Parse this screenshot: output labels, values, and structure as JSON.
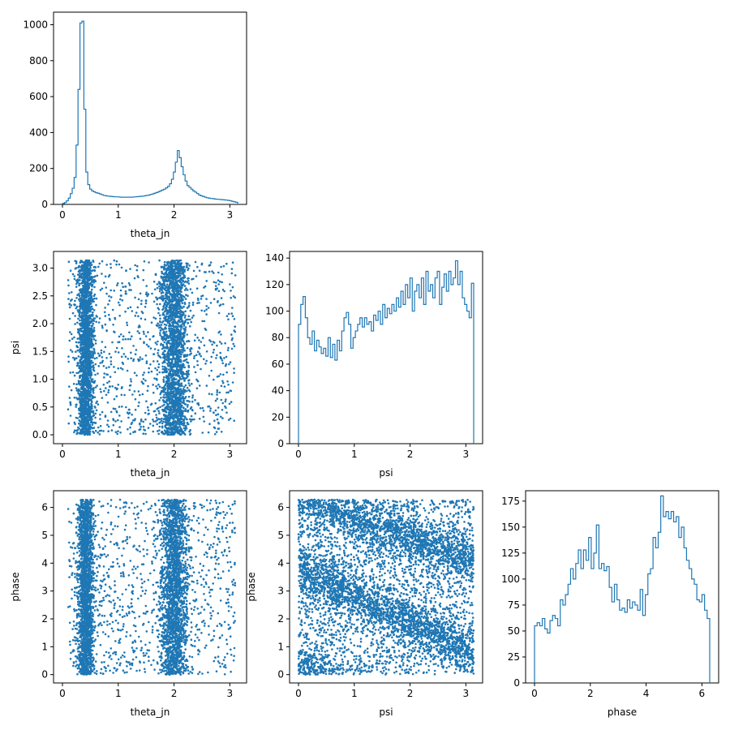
{
  "chart_data": [
    {
      "id": "hist-theta_jn",
      "type": "histogram",
      "xlabel": "theta_jn",
      "ylabel": "",
      "xlim": [
        -0.16,
        3.3
      ],
      "ylim": [
        0,
        1070
      ],
      "xticks": [
        0,
        1,
        2,
        3
      ],
      "yticks": [
        0,
        200,
        400,
        600,
        800,
        1000
      ],
      "bin_range": [
        0,
        3.14
      ],
      "counts": [
        5,
        10,
        20,
        35,
        60,
        90,
        150,
        330,
        640,
        1010,
        1020,
        530,
        180,
        110,
        85,
        75,
        70,
        65,
        62,
        58,
        54,
        50,
        48,
        46,
        45,
        44,
        43,
        42,
        42,
        41,
        40,
        40,
        40,
        40,
        40,
        40,
        41,
        42,
        43,
        44,
        45,
        46,
        48,
        50,
        52,
        55,
        58,
        62,
        66,
        70,
        75,
        80,
        85,
        92,
        100,
        115,
        140,
        180,
        235,
        300,
        260,
        210,
        165,
        130,
        105,
        95,
        85,
        75,
        68,
        60,
        52,
        48,
        44,
        40,
        37,
        35,
        33,
        32,
        30,
        29,
        28,
        27,
        26,
        25,
        24,
        22,
        20,
        17,
        14,
        12
      ]
    },
    {
      "id": "scatter-theta_jn-psi",
      "type": "scatter",
      "xlabel": "theta_jn",
      "ylabel": "psi",
      "xlim": [
        -0.16,
        3.3
      ],
      "ylim": [
        -0.16,
        3.3
      ],
      "xticks": [
        0,
        1,
        2,
        3
      ],
      "yticks": [
        0.0,
        0.5,
        1.0,
        1.5,
        2.0,
        2.5,
        3.0
      ],
      "ytick_labels": [
        "0.0",
        "0.5",
        "1.0",
        "1.5",
        "2.0",
        "2.5",
        "3.0"
      ],
      "n_points": 5000,
      "description_x": "clusters near 0.4 and 2.0",
      "description_y": "uniform 0 to 3.14"
    },
    {
      "id": "hist-psi",
      "type": "histogram",
      "xlabel": "psi",
      "ylabel": "",
      "xlim": [
        -0.16,
        3.3
      ],
      "ylim": [
        0,
        145
      ],
      "xticks": [
        0,
        1,
        2,
        3
      ],
      "yticks": [
        0,
        20,
        40,
        60,
        80,
        100,
        120,
        140
      ],
      "bin_range": [
        0,
        3.14
      ],
      "counts": [
        90,
        105,
        111,
        95,
        80,
        75,
        85,
        70,
        78,
        73,
        68,
        72,
        66,
        80,
        65,
        75,
        63,
        78,
        70,
        85,
        95,
        99,
        90,
        72,
        80,
        85,
        90,
        95,
        88,
        95,
        90,
        92,
        85,
        97,
        93,
        100,
        90,
        105,
        95,
        102,
        98,
        105,
        100,
        110,
        103,
        115,
        105,
        120,
        110,
        125,
        100,
        115,
        120,
        110,
        125,
        105,
        130,
        115,
        120,
        110,
        125,
        130,
        105,
        118,
        128,
        115,
        130,
        120,
        125,
        138,
        120,
        130,
        110,
        105,
        100,
        95,
        121
      ]
    },
    {
      "id": "scatter-theta_jn-phase",
      "type": "scatter",
      "xlabel": "theta_jn",
      "ylabel": "phase",
      "xlim": [
        -0.16,
        3.3
      ],
      "ylim": [
        -0.3,
        6.6
      ],
      "xticks": [
        0,
        1,
        2,
        3
      ],
      "yticks": [
        0,
        1,
        2,
        3,
        4,
        5,
        6
      ],
      "n_points": 5000
    },
    {
      "id": "scatter-psi-phase",
      "type": "scatter",
      "xlabel": "psi",
      "ylabel": "phase",
      "xlim": [
        -0.16,
        3.3
      ],
      "ylim": [
        -0.3,
        6.6
      ],
      "xticks": [
        0,
        1,
        2,
        3
      ],
      "yticks": [
        0,
        1,
        2,
        3,
        4,
        5,
        6
      ],
      "n_points": 6000
    },
    {
      "id": "hist-phase",
      "type": "histogram",
      "xlabel": "phase",
      "ylabel": "",
      "xlim": [
        -0.32,
        6.6
      ],
      "ylim": [
        0,
        185
      ],
      "xticks": [
        0,
        2,
        4,
        6
      ],
      "yticks": [
        0,
        25,
        50,
        75,
        100,
        125,
        150,
        175
      ],
      "bin_range": [
        0,
        6.28
      ],
      "counts": [
        55,
        58,
        55,
        62,
        52,
        48,
        60,
        65,
        62,
        55,
        80,
        75,
        85,
        95,
        110,
        100,
        115,
        128,
        110,
        128,
        118,
        140,
        110,
        125,
        152,
        110,
        115,
        108,
        112,
        92,
        78,
        95,
        80,
        70,
        72,
        68,
        80,
        72,
        78,
        75,
        70,
        90,
        65,
        85,
        105,
        110,
        140,
        130,
        145,
        180,
        160,
        165,
        158,
        165,
        155,
        160,
        140,
        150,
        130,
        118,
        110,
        100,
        95,
        80,
        78,
        85,
        70,
        62
      ]
    }
  ]
}
